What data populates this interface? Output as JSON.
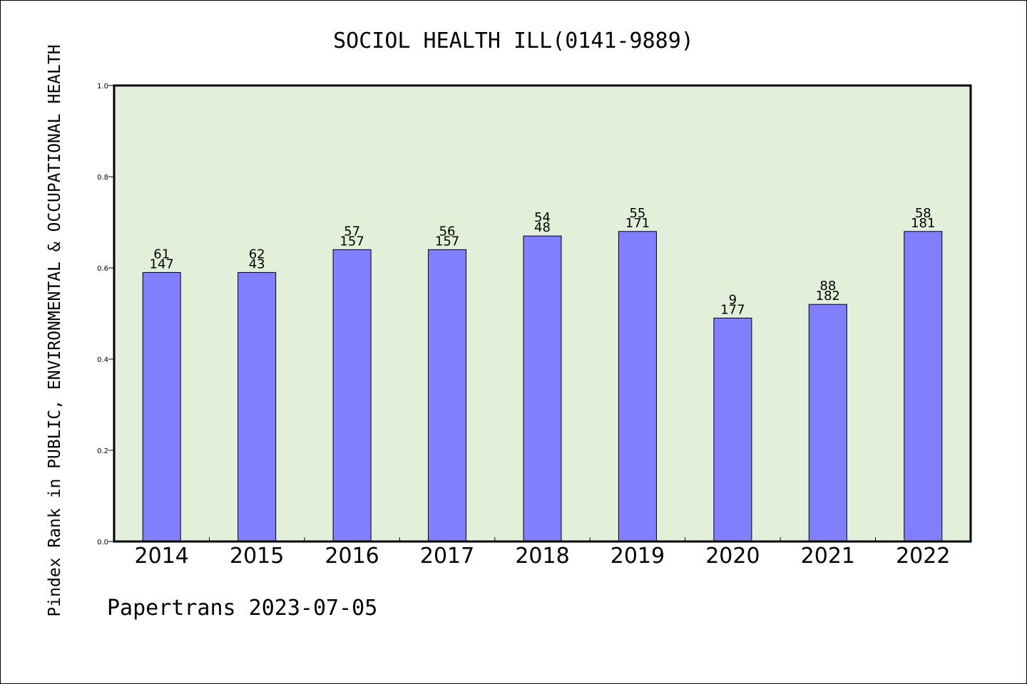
{
  "chart_data": {
    "type": "bar",
    "title": "SOCIOL HEALTH ILL(0141-9889)",
    "ylabel": "Pindex Rank in PUBLIC, ENVIRONMENTAL & OCCUPATIONAL HEALTH",
    "xlabel": "",
    "footer": "Papertrans 2023-07-05",
    "categories": [
      "2014",
      "2015",
      "2016",
      "2017",
      "2018",
      "2019",
      "2020",
      "2021",
      "2022"
    ],
    "values": [
      0.59,
      0.59,
      0.64,
      0.64,
      0.67,
      0.68,
      0.49,
      0.52,
      0.68
    ],
    "labels_top": [
      "61",
      "62",
      "57",
      "56",
      "54",
      "55",
      "9",
      "88",
      "58"
    ],
    "labels_bottom": [
      "147",
      "43",
      "157",
      "157",
      "48",
      "171",
      "177",
      "182",
      "181"
    ],
    "ylim": [
      0.0,
      1.0
    ],
    "yticks": [
      "0.0",
      "0.2",
      "0.4",
      "0.6",
      "0.8",
      "1.0"
    ],
    "grid": false,
    "colors": {
      "bar": "#8080ff",
      "plot_background": "#e2efd9",
      "axis": "#000000"
    }
  }
}
